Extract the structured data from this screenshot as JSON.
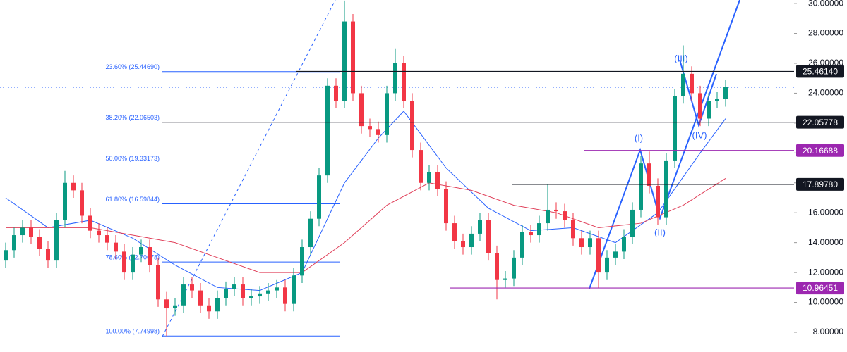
{
  "chart_data": {
    "type": "candlestick",
    "ylim": [
      6.68,
      30.24
    ],
    "yticks": [
      {
        "value": 8,
        "label": "8.00000"
      },
      {
        "value": 10,
        "label": "10.00000"
      },
      {
        "value": 12,
        "label": "12.00000"
      },
      {
        "value": 14,
        "label": "14.00000"
      },
      {
        "value": 16,
        "label": "16.00000"
      },
      {
        "value": 18,
        "label": "18.00000"
      },
      {
        "value": 20,
        "label": "20.00000"
      },
      {
        "value": 22,
        "label": "22.00000"
      },
      {
        "value": 24,
        "label": "24.00000"
      },
      {
        "value": 26,
        "label": "26.00000"
      },
      {
        "value": 28,
        "label": "28.00000"
      },
      {
        "value": 30,
        "label": "30.00000"
      }
    ],
    "up_color": "#089981",
    "down_color": "#f23645",
    "open": [
      12.8,
      13.5,
      14.5,
      15,
      14.4,
      13.6,
      12.8,
      15.5,
      18,
      17.5,
      15.8,
      14.8,
      14.5,
      14,
      13.4,
      12,
      13.2,
      13.7,
      12.5,
      10.2,
      9.6,
      9.8,
      11.2,
      10.8,
      9.8,
      9.4,
      10.3,
      10.9,
      11.2,
      10.3,
      10.4,
      10.6,
      10.8,
      11,
      9.9,
      11.8,
      13.7,
      15.6,
      18.5,
      24.5,
      23.5,
      28.8,
      24,
      21.8,
      21.6,
      21.2,
      24,
      26,
      23.5,
      20.2,
      18,
      18.7,
      17.6,
      15.3,
      14.1,
      13.7,
      14.6,
      15.5,
      13.3,
      11.5,
      11.6,
      13,
      14.7,
      14.5,
      15.3,
      16.2,
      16.1,
      15.5,
      14.3,
      13.7,
      14.3,
      12,
      13,
      13.4,
      14.4,
      16.2,
      19.3,
      17.8,
      15.7,
      19.5,
      23.8,
      25.3,
      24,
      22.3,
      23.5,
      23.6
    ],
    "high": [
      14,
      15,
      15.5,
      15.5,
      14.9,
      14.1,
      16,
      18.8,
      18.5,
      18,
      16.3,
      15.3,
      15,
      14.5,
      13.9,
      13.7,
      14.2,
      14.2,
      13,
      10.7,
      10.3,
      11.7,
      11.7,
      11.3,
      10.3,
      10.8,
      11.4,
      11.7,
      11.7,
      10.9,
      11.1,
      11.3,
      11.5,
      11.5,
      12.3,
      14.2,
      16.1,
      19,
      25,
      25,
      30.2,
      29.3,
      24.5,
      22.3,
      22.1,
      24.5,
      27,
      26.5,
      24,
      20.7,
      19.2,
      19.2,
      18.1,
      15.8,
      14.6,
      15.1,
      16,
      16,
      13.8,
      12.1,
      13.5,
      15.2,
      15.2,
      15.8,
      17.9,
      16.7,
      16.6,
      16,
      14.8,
      14.8,
      14.8,
      13.5,
      13.9,
      14.9,
      16.7,
      19.8,
      20.1,
      18.3,
      20,
      24.3,
      27.2,
      25.8,
      24.5,
      24,
      24.1,
      24.9
    ],
    "low": [
      12.3,
      13,
      14,
      13.9,
      13.1,
      12.3,
      12.3,
      15,
      17,
      15.3,
      14.3,
      14,
      13.5,
      12.9,
      11.5,
      11.5,
      12.7,
      12,
      9.7,
      7.75,
      9.1,
      9.3,
      10.3,
      9.3,
      8.9,
      8.9,
      9.8,
      10.4,
      9.8,
      9.8,
      9.9,
      10.1,
      10.3,
      9.4,
      9.4,
      11.3,
      13.2,
      15.1,
      18,
      23,
      23,
      23.5,
      21.3,
      21.1,
      20.7,
      20.7,
      23.5,
      23,
      19.7,
      17.5,
      17.5,
      17.1,
      14.8,
      13.6,
      13.2,
      13.2,
      14.1,
      12.8,
      10.2,
      11,
      11.1,
      12.5,
      14,
      14,
      14.8,
      15.6,
      15,
      13.8,
      13.2,
      13.2,
      10.96,
      11.5,
      12.5,
      12.9,
      13.9,
      15.7,
      17.3,
      15.2,
      15.2,
      19,
      23.3,
      23.5,
      21.8,
      21.8,
      23,
      23.1
    ],
    "close": [
      13.5,
      14.5,
      15,
      14.4,
      13.6,
      12.8,
      15.5,
      18,
      17.5,
      15.8,
      14.8,
      14.5,
      14,
      13.4,
      12,
      13.2,
      13.7,
      12.5,
      10.2,
      9.6,
      9.8,
      11.2,
      10.8,
      9.8,
      9.4,
      10.3,
      10.9,
      11.2,
      10.3,
      10.4,
      10.6,
      10.8,
      11,
      9.9,
      11.8,
      13.7,
      15.6,
      18.5,
      24.5,
      23.5,
      28.8,
      24,
      21.8,
      21.6,
      21.2,
      24,
      26,
      23.5,
      20.2,
      18,
      18.7,
      17.6,
      15.3,
      14.1,
      13.7,
      14.6,
      15.5,
      13.3,
      11.5,
      11.6,
      13,
      14.7,
      14.5,
      15.3,
      16.2,
      16.1,
      15.5,
      14.3,
      13.7,
      14.3,
      12,
      13,
      13.4,
      14.4,
      16.2,
      19.3,
      17.8,
      15.7,
      19.5,
      23.8,
      25.3,
      24,
      22.3,
      23.5,
      23.6,
      24.4
    ],
    "lines": [
      {
        "color": "#2962ff",
        "x": [
          0,
          5,
          10,
          15,
          20,
          25,
          30,
          35,
          40,
          44,
          47,
          52,
          57,
          62,
          67,
          72,
          77,
          82,
          85
        ],
        "values": [
          17,
          15,
          15.5,
          14.3,
          12.5,
          11,
          10.8,
          12,
          18,
          21,
          22.8,
          19,
          16.3,
          14.8,
          15,
          14,
          16,
          20,
          22.3
        ]
      },
      {
        "color": "#e0405a",
        "x": [
          0,
          10,
          20,
          30,
          35,
          40,
          45,
          50,
          55,
          60,
          65,
          70,
          75,
          80,
          85
        ],
        "values": [
          15,
          15,
          14,
          12,
          12,
          14,
          16.5,
          18,
          17.5,
          16.5,
          16,
          15,
          15.3,
          16.5,
          18.3
        ]
      }
    ],
    "fib_levels": [
      {
        "value": 25.4469,
        "label": "23.60% (25.44690)"
      },
      {
        "value": 22.06503,
        "label": "38.20% (22.06503)"
      },
      {
        "value": 19.33173,
        "label": "50.00% (19.33173)"
      },
      {
        "value": 16.59844,
        "label": "61.80% (16.59844)"
      },
      {
        "value": 12.70678,
        "label": "78.60% (12.70678)"
      },
      {
        "value": 7.74998,
        "label": "100.00% (7.74998)"
      }
    ],
    "price_levels": [
      {
        "value": 25.4614,
        "label": "25.46140",
        "color": "#131722"
      },
      {
        "value": 22.05778,
        "label": "22.05778",
        "color": "#131722"
      },
      {
        "value": 20.16688,
        "label": "20.16688",
        "color": "#9c27b0"
      },
      {
        "value": 17.8978,
        "label": "17.89780",
        "color": "#131722"
      },
      {
        "value": 10.96451,
        "label": "10.96451",
        "color": "#9c27b0"
      }
    ],
    "wave_labels": [
      "(I)",
      "(II)",
      "(III)",
      "(IV)"
    ]
  }
}
